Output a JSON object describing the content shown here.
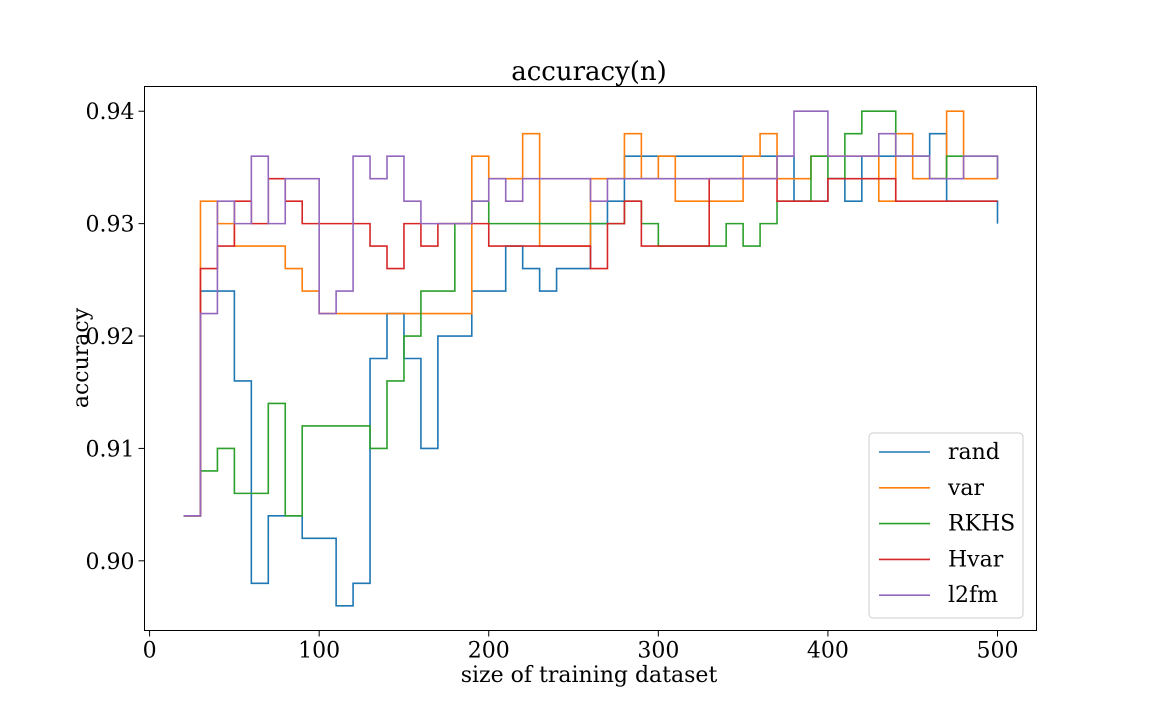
{
  "chart_data": {
    "type": "line",
    "title": "accuracy(n)",
    "xlabel": "size of training dataset",
    "ylabel": "accuracy",
    "xlim": [
      -3,
      523
    ],
    "ylim": [
      0.8938,
      0.9422
    ],
    "xticks": [
      0,
      100,
      200,
      300,
      400,
      500
    ],
    "yticks": [
      0.9,
      0.91,
      0.92,
      0.93,
      0.94
    ],
    "xtick_labels": [
      "0",
      "100",
      "200",
      "300",
      "400",
      "500"
    ],
    "ytick_labels": [
      "0.90",
      "0.91",
      "0.92",
      "0.93",
      "0.94"
    ],
    "grid": false,
    "legend_position": "lower-right",
    "step_size": 10,
    "x": [
      20,
      30,
      40,
      50,
      60,
      70,
      80,
      90,
      100,
      110,
      120,
      130,
      140,
      150,
      160,
      170,
      180,
      190,
      200,
      210,
      220,
      230,
      240,
      250,
      260,
      270,
      280,
      290,
      300,
      310,
      320,
      330,
      340,
      350,
      360,
      370,
      380,
      390,
      400,
      410,
      420,
      430,
      440,
      450,
      460,
      470,
      480,
      490,
      500
    ],
    "series": [
      {
        "name": "rand",
        "color": "#1f77b4",
        "values": [
          0.904,
          0.924,
          0.924,
          0.916,
          0.898,
          0.904,
          0.904,
          0.902,
          0.902,
          0.896,
          0.898,
          0.918,
          0.922,
          0.918,
          0.91,
          0.92,
          0.92,
          0.924,
          0.924,
          0.928,
          0.926,
          0.924,
          0.926,
          0.926,
          0.93,
          0.932,
          0.936,
          0.936,
          0.936,
          0.936,
          0.936,
          0.936,
          0.936,
          0.936,
          0.936,
          0.936,
          0.932,
          0.932,
          0.934,
          0.932,
          0.936,
          0.936,
          0.936,
          0.936,
          0.938,
          0.932,
          0.932,
          0.932,
          0.93
        ]
      },
      {
        "name": "var",
        "color": "#ff7f0e",
        "values": [
          0.904,
          0.932,
          0.93,
          0.928,
          0.928,
          0.928,
          0.926,
          0.924,
          0.922,
          0.922,
          0.922,
          0.922,
          0.922,
          0.922,
          0.922,
          0.922,
          0.922,
          0.936,
          0.934,
          0.934,
          0.938,
          0.928,
          0.928,
          0.928,
          0.934,
          0.934,
          0.938,
          0.934,
          0.936,
          0.932,
          0.932,
          0.932,
          0.932,
          0.936,
          0.938,
          0.934,
          0.934,
          0.936,
          0.936,
          0.936,
          0.936,
          0.932,
          0.938,
          0.934,
          0.934,
          0.94,
          0.934,
          0.934,
          0.934
        ]
      },
      {
        "name": "RKHS",
        "color": "#2ca02c",
        "values": [
          0.904,
          0.908,
          0.91,
          0.906,
          0.906,
          0.914,
          0.904,
          0.912,
          0.912,
          0.912,
          0.912,
          0.91,
          0.916,
          0.92,
          0.924,
          0.924,
          0.93,
          0.932,
          0.93,
          0.93,
          0.93,
          0.93,
          0.93,
          0.93,
          0.93,
          0.93,
          0.932,
          0.93,
          0.928,
          0.928,
          0.928,
          0.928,
          0.93,
          0.928,
          0.93,
          0.932,
          0.932,
          0.936,
          0.934,
          0.938,
          0.94,
          0.94,
          0.936,
          0.936,
          0.934,
          0.936,
          0.936,
          0.936,
          0.934
        ]
      },
      {
        "name": "Hvar",
        "color": "#d62728",
        "values": [
          0.904,
          0.926,
          0.928,
          0.932,
          0.93,
          0.934,
          0.932,
          0.93,
          0.93,
          0.93,
          0.93,
          0.928,
          0.926,
          0.93,
          0.928,
          0.93,
          0.93,
          0.93,
          0.928,
          0.928,
          0.928,
          0.928,
          0.928,
          0.928,
          0.926,
          0.93,
          0.932,
          0.928,
          0.928,
          0.928,
          0.928,
          0.934,
          0.934,
          0.934,
          0.934,
          0.932,
          0.932,
          0.932,
          0.934,
          0.934,
          0.934,
          0.934,
          0.932,
          0.932,
          0.932,
          0.932,
          0.932,
          0.932,
          0.932
        ]
      },
      {
        "name": "l2fm",
        "color": "#9467bd",
        "values": [
          0.904,
          0.922,
          0.932,
          0.93,
          0.936,
          0.93,
          0.934,
          0.934,
          0.922,
          0.924,
          0.936,
          0.934,
          0.936,
          0.932,
          0.93,
          0.93,
          0.93,
          0.932,
          0.934,
          0.932,
          0.934,
          0.934,
          0.934,
          0.934,
          0.932,
          0.934,
          0.934,
          0.934,
          0.934,
          0.934,
          0.934,
          0.934,
          0.934,
          0.934,
          0.934,
          0.936,
          0.94,
          0.94,
          0.936,
          0.936,
          0.936,
          0.938,
          0.936,
          0.936,
          0.934,
          0.934,
          0.936,
          0.936,
          0.934
        ]
      }
    ]
  }
}
